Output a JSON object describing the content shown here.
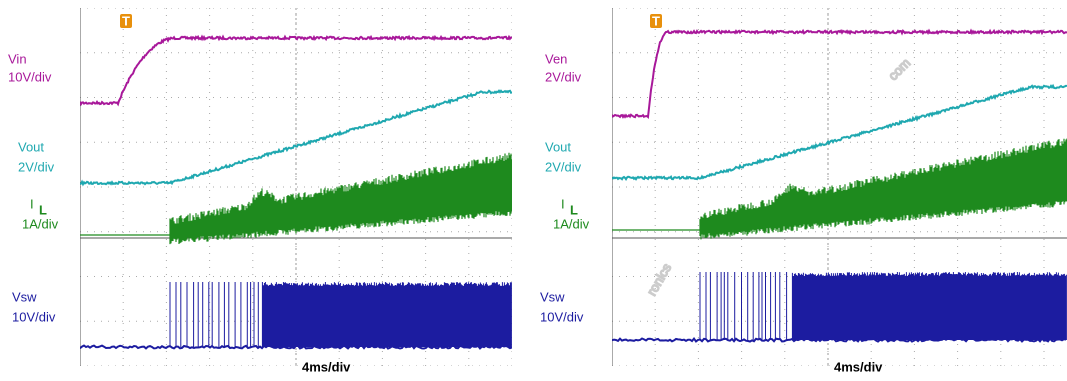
{
  "panels": [
    {
      "channels": [
        {
          "name": "Vin",
          "scale": "10V/div"
        },
        {
          "name": "Vout",
          "scale": "2V/div"
        },
        {
          "name": "I",
          "subscript": "L",
          "scale": "1A/div"
        },
        {
          "name": "Vsw",
          "scale": "10V/div"
        }
      ],
      "timebase": "4ms/div",
      "trigger": "T"
    },
    {
      "channels": [
        {
          "name": "Ven",
          "scale": "2V/div"
        },
        {
          "name": "Vout",
          "scale": "2V/div"
        },
        {
          "name": "I",
          "subscript": "L",
          "scale": "1A/div"
        },
        {
          "name": "Vsw",
          "scale": "10V/div"
        }
      ],
      "timebase": "4ms/div",
      "trigger": "T"
    }
  ],
  "watermark": [
    "com",
    "ronics"
  ]
}
